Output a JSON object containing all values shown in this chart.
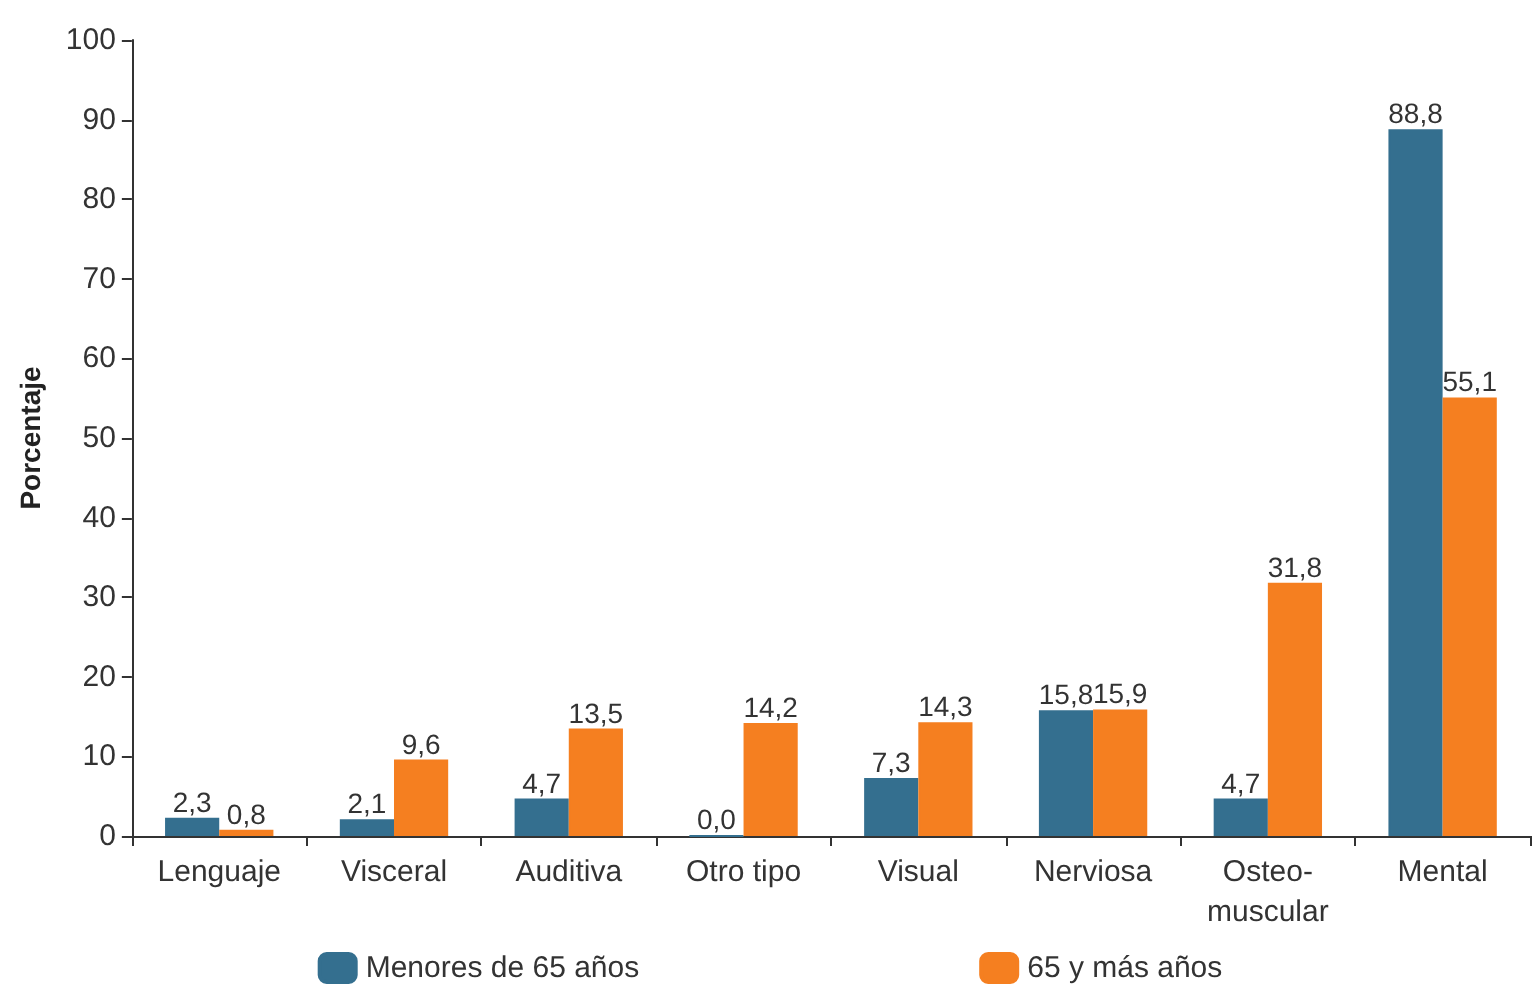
{
  "chart_data": {
    "type": "bar",
    "ylabel": "Porcentaje",
    "categories": [
      "Lenguaje",
      "Visceral",
      "Auditiva",
      "Otro tipo",
      "Visual",
      "Nerviosa",
      "Osteo-\nmuscular",
      "Mental"
    ],
    "series": [
      {
        "name": "Menores de 65 años",
        "color": "#346f8f",
        "values": [
          2.3,
          2.1,
          4.7,
          0.0,
          7.3,
          15.8,
          4.7,
          88.8
        ],
        "value_labels": [
          "2,3",
          "2,1",
          "4,7",
          "0,0",
          "7,3",
          "15,8",
          "4,7",
          "88,8"
        ]
      },
      {
        "name": "65 y más años",
        "color": "#f57f20",
        "values": [
          0.8,
          9.6,
          13.5,
          14.2,
          14.3,
          15.9,
          31.8,
          55.1
        ],
        "value_labels": [
          "0,8",
          "9,6",
          "13,5",
          "14,2",
          "14,3",
          "15,9",
          "31,8",
          "55,1"
        ]
      }
    ],
    "ylim": [
      0,
      100
    ],
    "yticks": [
      0,
      10,
      20,
      30,
      40,
      50,
      60,
      70,
      80,
      90,
      100
    ],
    "grid": false,
    "legend": "bottom"
  }
}
